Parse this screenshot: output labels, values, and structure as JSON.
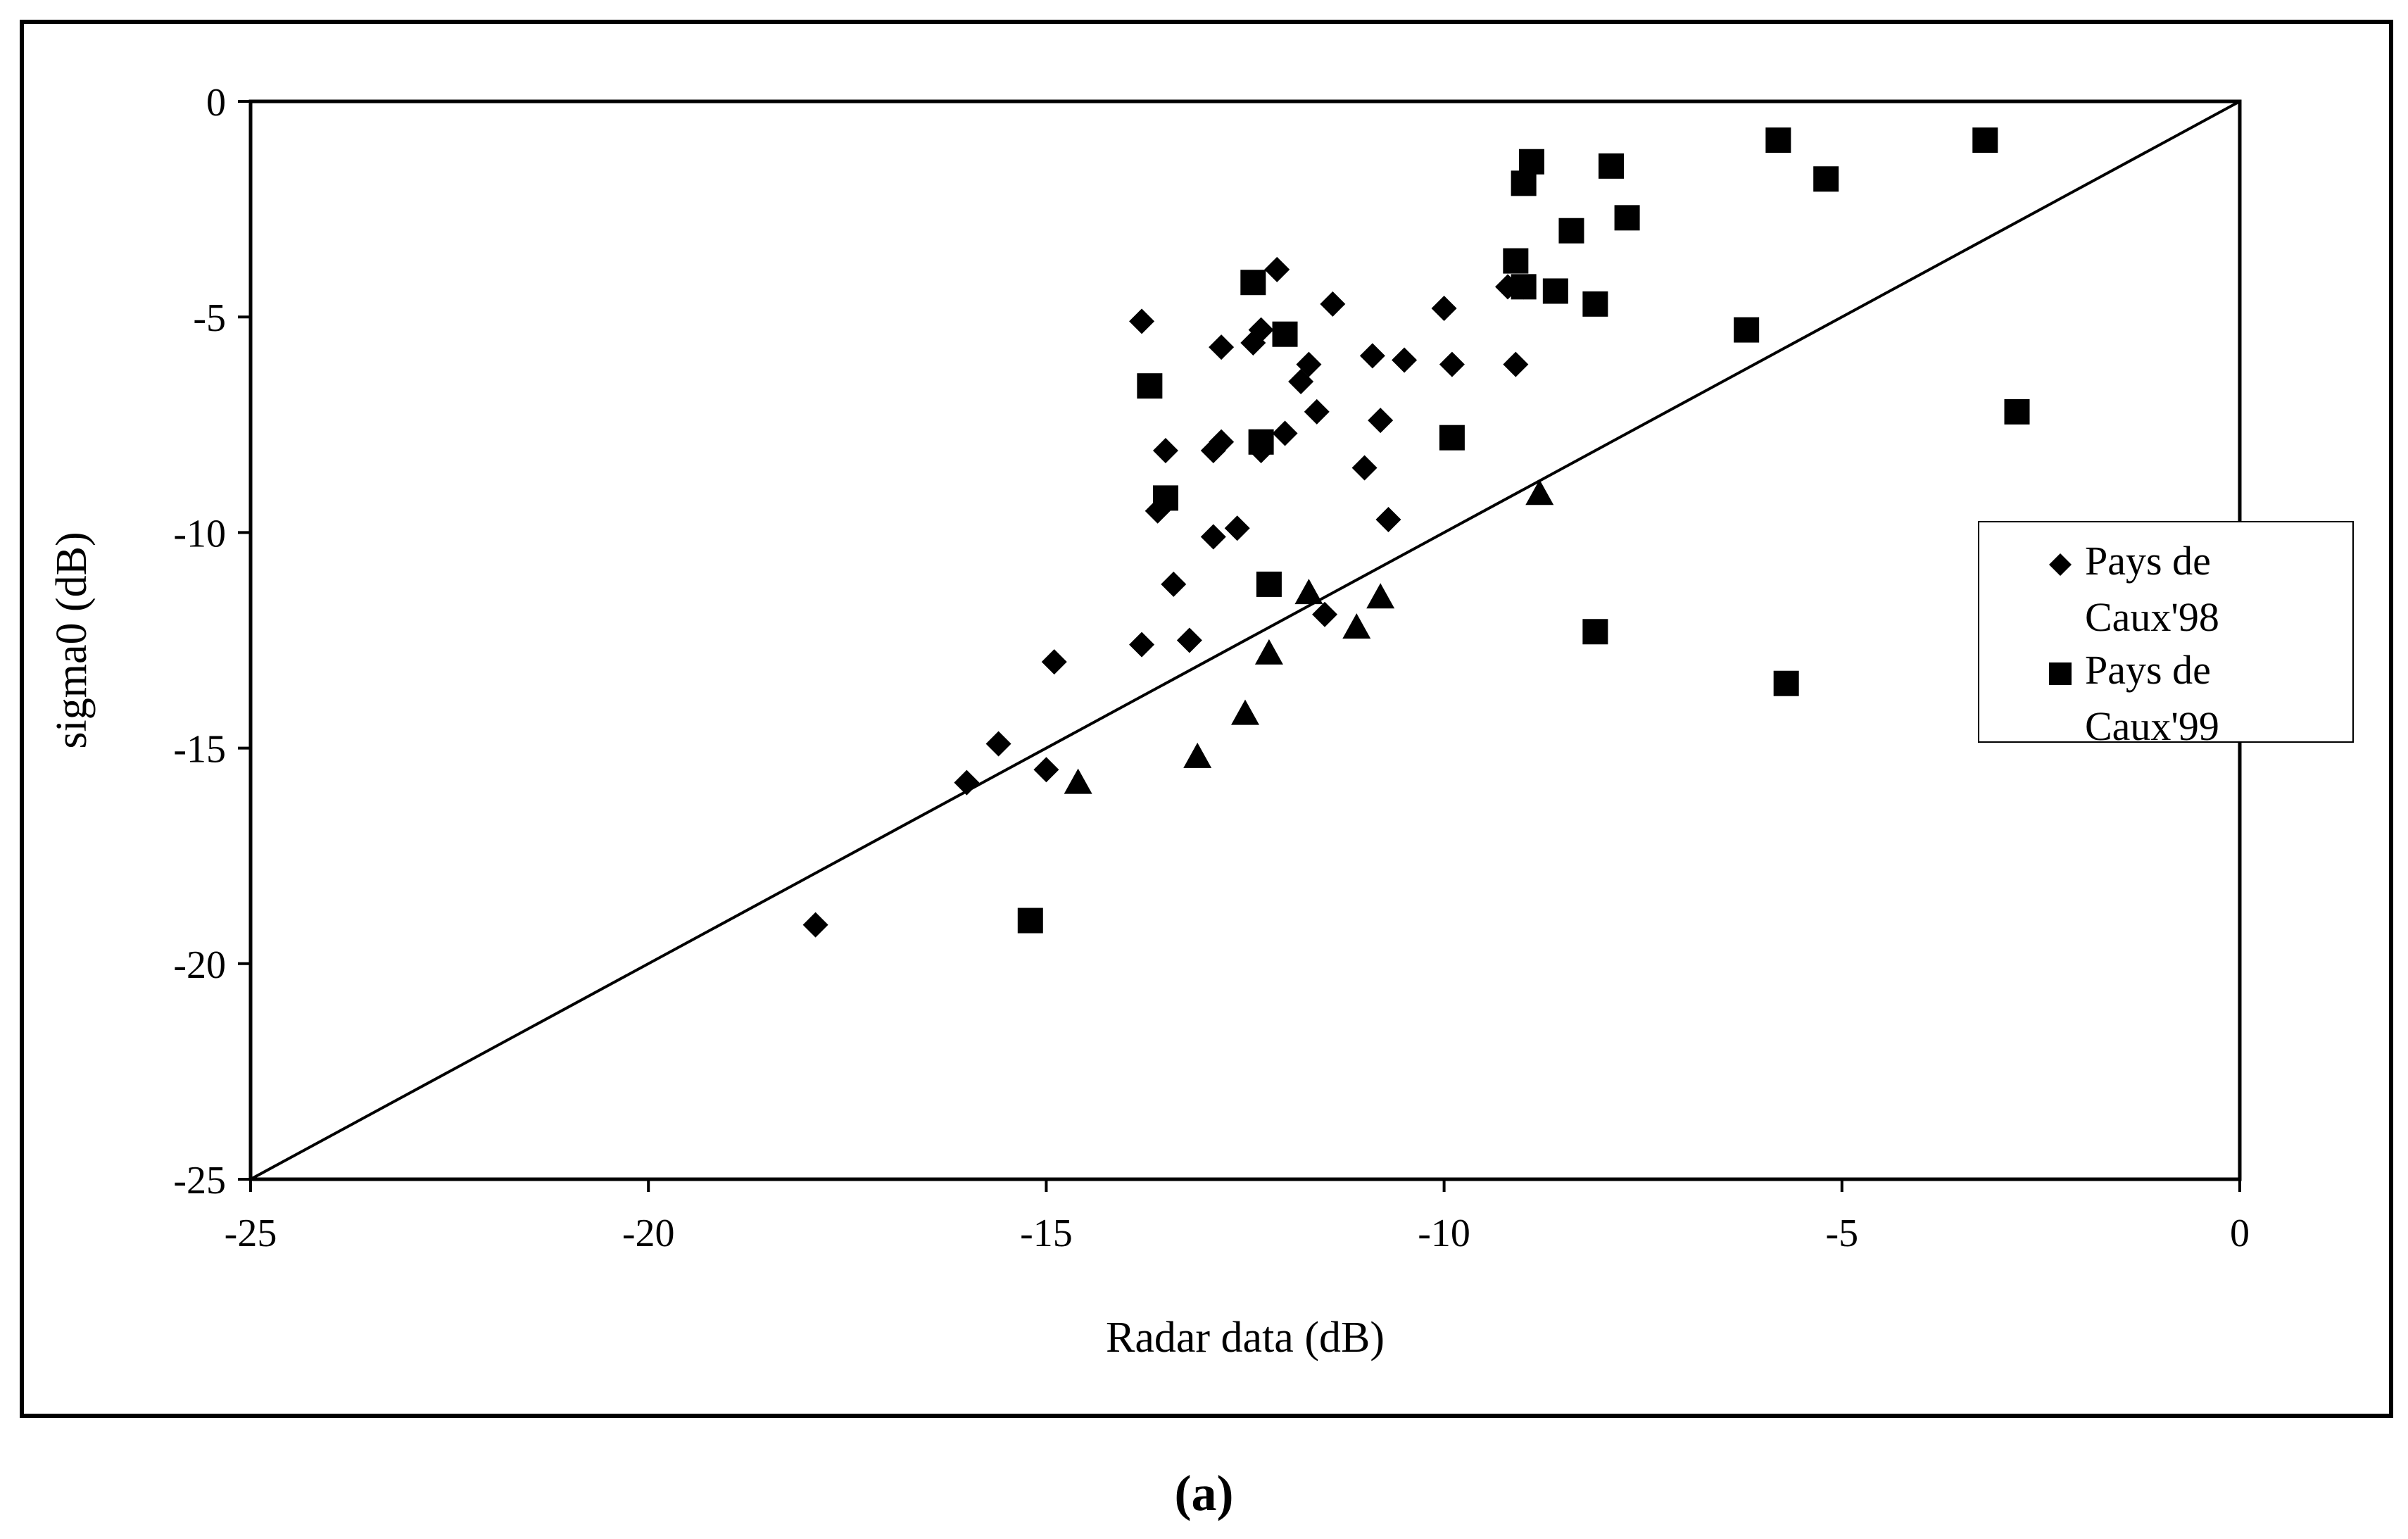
{
  "chart_data": {
    "type": "scatter",
    "title": "",
    "xlabel": "Radar data (dB)",
    "ylabel": "sigma0 (dB)",
    "xlim": [
      -25,
      0
    ],
    "ylim": [
      -25,
      0
    ],
    "xticks": [
      "-25",
      "-20",
      "-15",
      "-10",
      "-5",
      "0"
    ],
    "yticks": [
      "0",
      "-5",
      "-10",
      "-15",
      "-20",
      "-25"
    ],
    "grid": false,
    "legend_position": "right",
    "reference_line": {
      "from": [
        -25,
        -25
      ],
      "to": [
        0,
        0
      ]
    },
    "series": [
      {
        "name": "Pays de Caux'98",
        "marker": "diamond",
        "color": "#000000",
        "points": [
          [
            -17.9,
            -19.1
          ],
          [
            -16.0,
            -15.8
          ],
          [
            -15.6,
            -14.9
          ],
          [
            -15.0,
            -15.5
          ],
          [
            -14.9,
            -13.0
          ],
          [
            -13.8,
            -12.6
          ],
          [
            -13.8,
            -5.1
          ],
          [
            -13.6,
            -9.5
          ],
          [
            -13.5,
            -8.1
          ],
          [
            -13.4,
            -11.2
          ],
          [
            -13.2,
            -12.5
          ],
          [
            -12.9,
            -8.1
          ],
          [
            -12.9,
            -10.1
          ],
          [
            -12.8,
            -7.9
          ],
          [
            -12.8,
            -5.7
          ],
          [
            -12.6,
            -9.9
          ],
          [
            -12.4,
            -5.6
          ],
          [
            -12.3,
            -5.3
          ],
          [
            -12.3,
            -8.1
          ],
          [
            -12.1,
            -3.9
          ],
          [
            -12.0,
            -7.7
          ],
          [
            -11.8,
            -6.5
          ],
          [
            -11.7,
            -6.1
          ],
          [
            -11.6,
            -7.2
          ],
          [
            -11.5,
            -11.9
          ],
          [
            -11.4,
            -4.7
          ],
          [
            -11.0,
            -8.5
          ],
          [
            -10.9,
            -5.9
          ],
          [
            -10.8,
            -7.4
          ],
          [
            -10.7,
            -9.7
          ],
          [
            -10.5,
            -6.0
          ],
          [
            -10.0,
            -4.8
          ],
          [
            -9.9,
            -6.1
          ],
          [
            -9.2,
            -4.3
          ],
          [
            -9.1,
            -6.1
          ],
          [
            -9.0,
            -4.3
          ]
        ]
      },
      {
        "name": "Pays de Caux'99",
        "marker": "square",
        "color": "#000000",
        "points": [
          [
            -15.2,
            -19.0
          ],
          [
            -13.7,
            -6.6
          ],
          [
            -13.5,
            -9.2
          ],
          [
            -12.4,
            -4.2
          ],
          [
            -12.3,
            -7.9
          ],
          [
            -12.2,
            -11.2
          ],
          [
            -12.0,
            -5.4
          ],
          [
            -9.9,
            -7.8
          ],
          [
            -9.1,
            -3.7
          ],
          [
            -9.0,
            -1.9
          ],
          [
            -9.0,
            -4.3
          ],
          [
            -8.9,
            -1.4
          ],
          [
            -8.6,
            -4.4
          ],
          [
            -8.4,
            -3.0
          ],
          [
            -8.1,
            -4.7
          ],
          [
            -8.1,
            -12.3
          ],
          [
            -7.9,
            -1.5
          ],
          [
            -7.7,
            -2.7
          ],
          [
            -6.2,
            -5.3
          ],
          [
            -5.8,
            -0.9
          ],
          [
            -5.7,
            -13.5
          ],
          [
            -5.2,
            -1.8
          ],
          [
            -3.2,
            -0.9
          ],
          [
            -2.8,
            -7.2
          ]
        ]
      },
      {
        "marker": "triangle",
        "color": "#000000",
        "points": [
          [
            -14.6,
            -15.8
          ],
          [
            -13.1,
            -15.2
          ],
          [
            -12.5,
            -14.2
          ],
          [
            -12.2,
            -12.8
          ],
          [
            -11.7,
            -11.4
          ],
          [
            -11.1,
            -12.2
          ],
          [
            -10.8,
            -11.5
          ],
          [
            -8.8,
            -9.1
          ]
        ]
      }
    ]
  },
  "legend": {
    "entries": [
      {
        "label": "Pays de Caux'98",
        "marker": "diamond"
      },
      {
        "label": "Pays de Caux'99",
        "marker": "square"
      }
    ]
  },
  "panel_label": "(a)"
}
